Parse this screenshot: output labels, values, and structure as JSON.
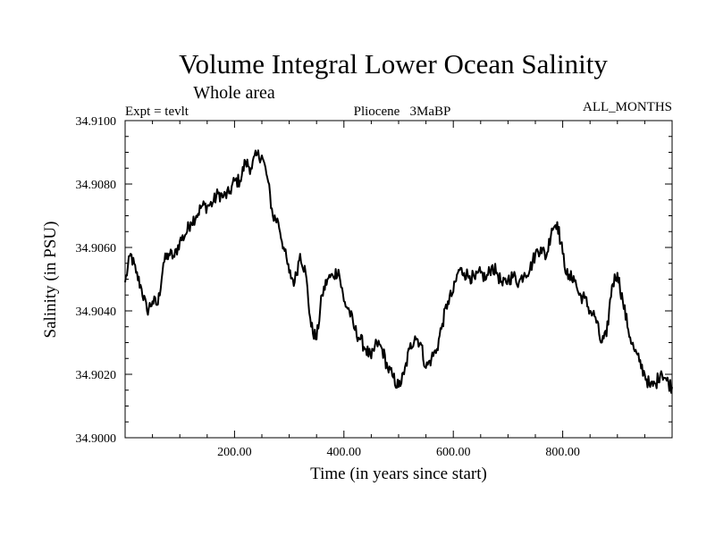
{
  "chart_data": {
    "type": "line",
    "title": "Volume Integral Lower Ocean Salinity",
    "subtitle": "Whole area",
    "annotations": {
      "left": "Expt = tevlt",
      "center": "Pliocene   3MaBP",
      "right": "ALL_MONTHS"
    },
    "xlabel": "Time (in years since start)",
    "ylabel": "Salinity (in PSU)",
    "xlim": [
      0,
      1000
    ],
    "ylim": [
      34.9,
      34.91
    ],
    "xticks": [
      200,
      400,
      600,
      800
    ],
    "xtick_labels": [
      "200.00",
      "400.00",
      "600.00",
      "800.00"
    ],
    "yticks": [
      34.9,
      34.902,
      34.904,
      34.906,
      34.908,
      34.91
    ],
    "ytick_labels": [
      "34.9000",
      "34.9020",
      "34.9040",
      "34.9060",
      "34.9080",
      "34.9100"
    ],
    "grid": false,
    "series": [
      {
        "name": "Salinity",
        "x": [
          0,
          10,
          20,
          30,
          40,
          50,
          60,
          70,
          80,
          90,
          100,
          110,
          120,
          130,
          140,
          150,
          160,
          170,
          180,
          190,
          200,
          210,
          220,
          230,
          240,
          250,
          260,
          270,
          280,
          290,
          300,
          310,
          320,
          330,
          340,
          350,
          360,
          370,
          380,
          390,
          400,
          410,
          420,
          430,
          440,
          450,
          460,
          470,
          480,
          490,
          500,
          510,
          520,
          530,
          540,
          550,
          560,
          570,
          580,
          590,
          600,
          610,
          620,
          630,
          640,
          650,
          660,
          670,
          680,
          690,
          700,
          710,
          720,
          730,
          740,
          750,
          760,
          770,
          780,
          790,
          800,
          810,
          820,
          830,
          840,
          850,
          860,
          870,
          880,
          890,
          900,
          910,
          920,
          930,
          940,
          950,
          960,
          970,
          980,
          990,
          1000
        ],
        "values": [
          34.9049,
          34.9058,
          34.9052,
          34.9047,
          34.904,
          34.9043,
          34.9042,
          34.9055,
          34.9058,
          34.9057,
          34.9062,
          34.9064,
          34.9068,
          34.907,
          34.9073,
          34.9073,
          34.9074,
          34.9077,
          34.9076,
          34.9077,
          34.9081,
          34.9081,
          34.9087,
          34.9085,
          34.9089,
          34.9089,
          34.9082,
          34.907,
          34.9068,
          34.906,
          34.9052,
          34.9049,
          34.9058,
          34.9052,
          34.9035,
          34.9031,
          34.9045,
          34.905,
          34.9051,
          34.9053,
          34.9043,
          34.904,
          34.9034,
          34.9031,
          34.9028,
          34.9025,
          34.903,
          34.9028,
          34.9022,
          34.9019,
          34.9016,
          34.902,
          34.9028,
          34.9032,
          34.903,
          34.9022,
          34.9025,
          34.9028,
          34.9036,
          34.9043,
          34.9046,
          34.9053,
          34.9052,
          34.9051,
          34.905,
          34.9052,
          34.905,
          34.9054,
          34.9052,
          34.9048,
          34.905,
          34.9051,
          34.9049,
          34.9052,
          34.9053,
          34.9058,
          34.906,
          34.9057,
          34.9066,
          34.9068,
          34.9058,
          34.905,
          34.9051,
          34.9045,
          34.9044,
          34.904,
          34.9038,
          34.903,
          34.9032,
          34.9048,
          34.9052,
          34.9043,
          34.9034,
          34.9028,
          34.9024,
          34.902,
          34.9016,
          34.9017,
          34.9021,
          34.9018,
          34.9016
        ]
      }
    ]
  }
}
